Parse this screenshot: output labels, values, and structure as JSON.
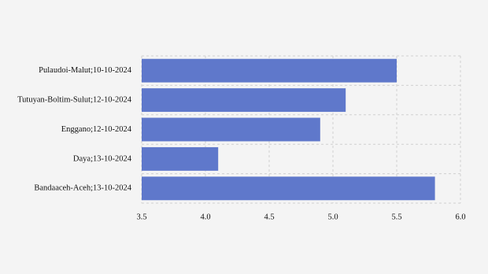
{
  "chart_data": {
    "type": "hbar",
    "categories": [
      "Pulaudoi-Malut;10-10-2024",
      "Tutuyan-Boltim-Sulut;12-10-2024",
      "Enggano;12-10-2024",
      "Daya;13-10-2024",
      "Bandaaceh-Aceh;13-10-2024"
    ],
    "values": [
      5.5,
      5.1,
      4.9,
      4.1,
      5.8
    ],
    "color": "#5f78cb",
    "xlim": [
      3.5,
      6.0
    ],
    "xticks": [
      3.5,
      {
        "value": 4.0,
        "label": "4.0"
      },
      4.5,
      {
        "value": 5.0,
        "label": "5.0"
      },
      5.5,
      {
        "value": 6.0,
        "label": "6.0"
      }
    ],
    "grid": true
  }
}
